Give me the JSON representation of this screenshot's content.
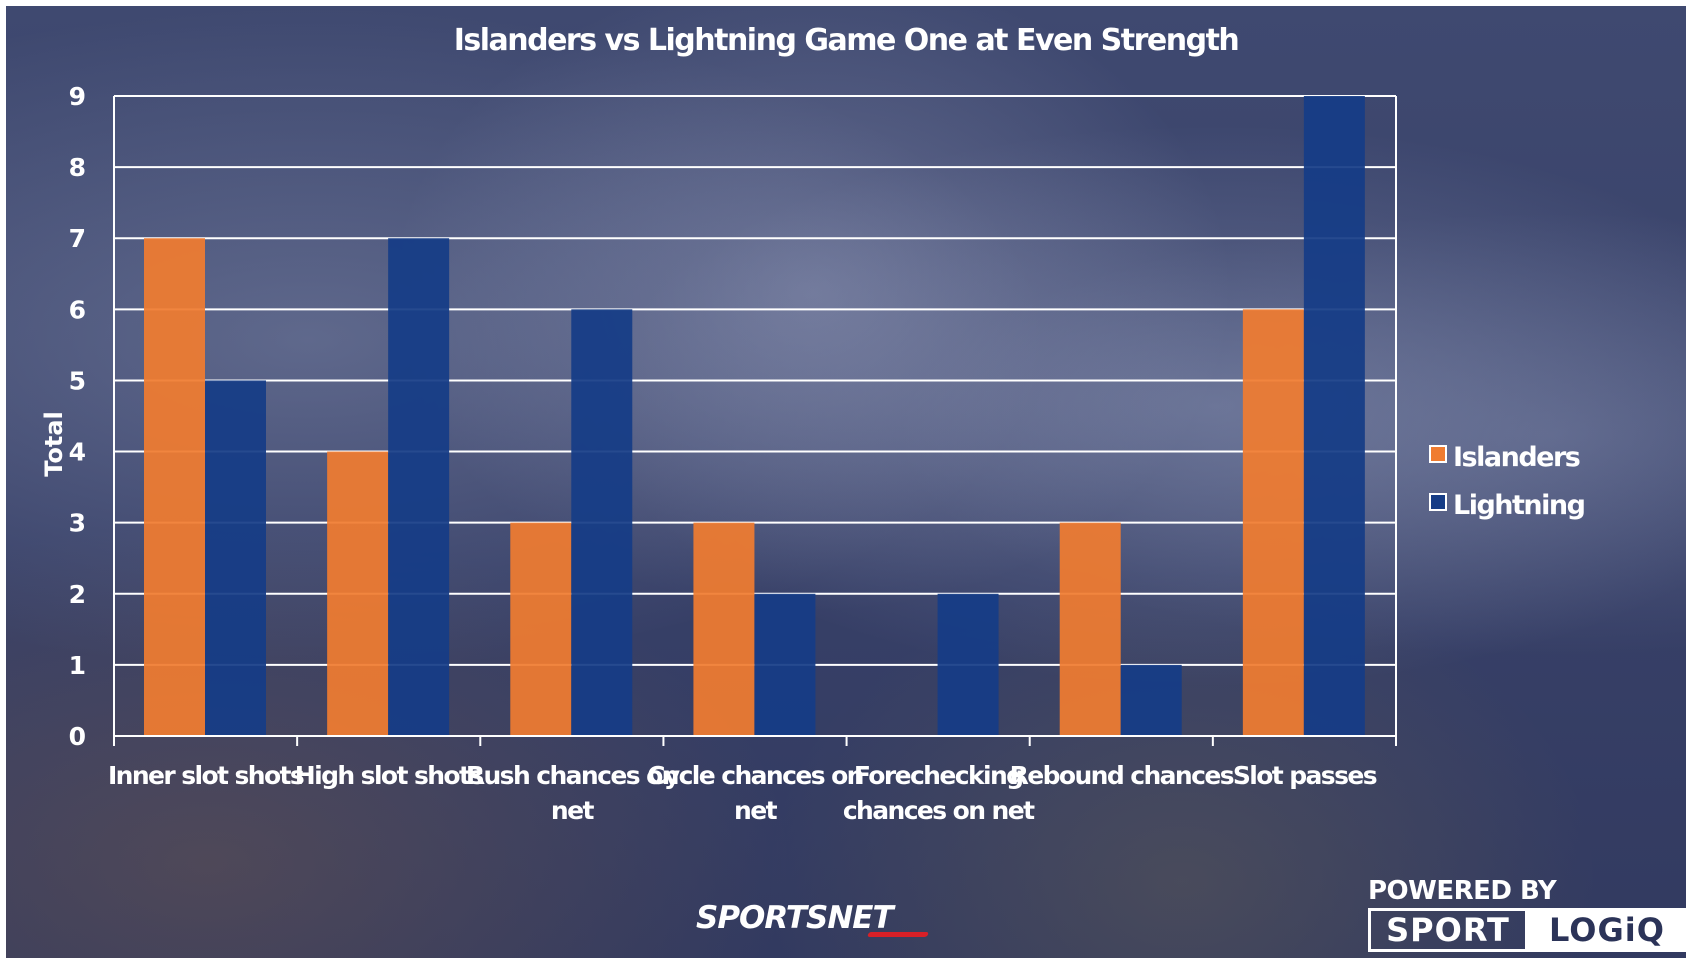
{
  "colors": {
    "islanders": "#f07c30",
    "lightning": "#163c86"
  },
  "branding": {
    "sportsnet_a": "SPORTS",
    "sportsnet_b": "NET",
    "powered_by": "POWERED BY",
    "sport": "SPORT",
    "logiq": "LOGiQ"
  },
  "chart_data": {
    "type": "bar",
    "title": "Islanders vs Lightning  Game One at Even Strength",
    "xlabel": "",
    "ylabel": "Total",
    "ylim": [
      0,
      9
    ],
    "yticks": [
      0,
      1,
      2,
      3,
      4,
      5,
      6,
      7,
      8,
      9
    ],
    "grid": true,
    "legend_position": "right",
    "categories": [
      "Inner slot shots",
      "High slot shots",
      "Rush chances on net",
      "Cycle chances on net",
      "Forechecking chances on net",
      "Rebound chances",
      "Slot passes"
    ],
    "category_lines": [
      [
        "Inner slot shots"
      ],
      [
        "High slot shots"
      ],
      [
        "Rush chances on",
        "net"
      ],
      [
        "Cycle chances on",
        "net"
      ],
      [
        "Forechecking",
        "chances on net"
      ],
      [
        "Rebound chances"
      ],
      [
        "Slot passes"
      ]
    ],
    "series": [
      {
        "name": "Islanders",
        "values": [
          7,
          4,
          3,
          3,
          0,
          3,
          6
        ]
      },
      {
        "name": "Lightning",
        "values": [
          5,
          7,
          6,
          2,
          2,
          1,
          9
        ]
      }
    ]
  }
}
